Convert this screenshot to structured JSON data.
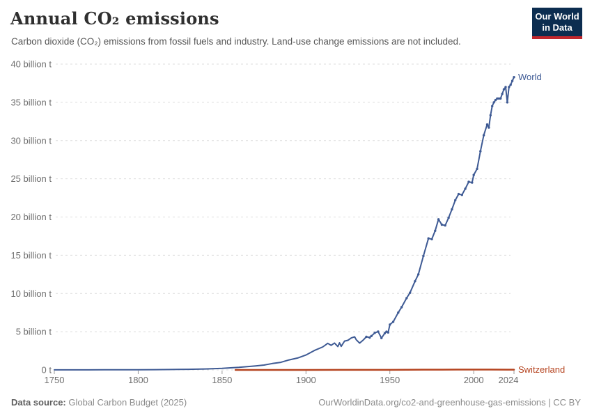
{
  "header": {
    "title": "Annual CO₂ emissions",
    "subtitle": "Carbon dioxide (CO₂) emissions from fossil fuels and industry. Land-use change emissions are not included.",
    "logo": {
      "line1": "Our World",
      "line2": "in Data",
      "bg_color": "#0c2d50",
      "bar_color": "#c1272d"
    }
  },
  "chart_data": {
    "type": "line",
    "title": "Annual CO₂ emissions",
    "xlabel": "",
    "ylabel": "",
    "unit": "billion tonnes of CO₂ per year",
    "xlim": [
      1750,
      2024
    ],
    "ylim": [
      0,
      40
    ],
    "grid": "horizontal dashed",
    "grid_color": "#dcdcdc",
    "tick_color": "#9a9a9a",
    "label_color": "#6e6e6e",
    "legend_position": "end-of-line labels",
    "x_ticks": [
      1750,
      1800,
      1850,
      1900,
      1950,
      2000,
      2024
    ],
    "y_ticks": [
      {
        "value": 0,
        "label": "0 t"
      },
      {
        "value": 5,
        "label": "5 billion t"
      },
      {
        "value": 10,
        "label": "10 billion t"
      },
      {
        "value": 15,
        "label": "15 billion t"
      },
      {
        "value": 20,
        "label": "20 billion t"
      },
      {
        "value": 25,
        "label": "25 billion t"
      },
      {
        "value": 30,
        "label": "30 billion t"
      },
      {
        "value": 35,
        "label": "35 billion t"
      },
      {
        "value": 40,
        "label": "40 billion t"
      }
    ],
    "series": [
      {
        "name": "World",
        "color": "#3e5a94",
        "markers_from_year": 1935,
        "points": [
          [
            1750,
            0.01
          ],
          [
            1760,
            0.011
          ],
          [
            1770,
            0.013
          ],
          [
            1780,
            0.016
          ],
          [
            1790,
            0.021
          ],
          [
            1800,
            0.03
          ],
          [
            1810,
            0.04
          ],
          [
            1820,
            0.054
          ],
          [
            1830,
            0.08
          ],
          [
            1840,
            0.13
          ],
          [
            1850,
            0.2
          ],
          [
            1855,
            0.27
          ],
          [
            1860,
            0.34
          ],
          [
            1865,
            0.43
          ],
          [
            1870,
            0.53
          ],
          [
            1875,
            0.64
          ],
          [
            1880,
            0.84
          ],
          [
            1885,
            0.99
          ],
          [
            1890,
            1.31
          ],
          [
            1895,
            1.56
          ],
          [
            1900,
            1.95
          ],
          [
            1905,
            2.54
          ],
          [
            1910,
            3.01
          ],
          [
            1913,
            3.48
          ],
          [
            1915,
            3.22
          ],
          [
            1917,
            3.52
          ],
          [
            1919,
            3.06
          ],
          [
            1920,
            3.55
          ],
          [
            1921,
            3.08
          ],
          [
            1923,
            3.77
          ],
          [
            1925,
            3.87
          ],
          [
            1927,
            4.18
          ],
          [
            1929,
            4.33
          ],
          [
            1930,
            3.94
          ],
          [
            1932,
            3.51
          ],
          [
            1934,
            3.88
          ],
          [
            1936,
            4.34
          ],
          [
            1938,
            4.24
          ],
          [
            1939,
            4.44
          ],
          [
            1941,
            4.85
          ],
          [
            1943,
            5.02
          ],
          [
            1945,
            4.16
          ],
          [
            1947,
            4.8
          ],
          [
            1948,
            5.0
          ],
          [
            1949,
            4.9
          ],
          [
            1950,
            5.93
          ],
          [
            1952,
            6.3
          ],
          [
            1955,
            7.5
          ],
          [
            1957,
            8.2
          ],
          [
            1960,
            9.39
          ],
          [
            1962,
            10.1
          ],
          [
            1965,
            11.6
          ],
          [
            1967,
            12.5
          ],
          [
            1970,
            14.9
          ],
          [
            1973,
            17.2
          ],
          [
            1975,
            17.1
          ],
          [
            1977,
            18.2
          ],
          [
            1979,
            19.7
          ],
          [
            1981,
            19.0
          ],
          [
            1983,
            18.9
          ],
          [
            1985,
            19.9
          ],
          [
            1987,
            21.0
          ],
          [
            1989,
            22.2
          ],
          [
            1991,
            23.0
          ],
          [
            1993,
            22.9
          ],
          [
            1995,
            23.7
          ],
          [
            1997,
            24.6
          ],
          [
            1999,
            24.5
          ],
          [
            2000,
            25.5
          ],
          [
            2002,
            26.3
          ],
          [
            2004,
            28.6
          ],
          [
            2006,
            30.7
          ],
          [
            2008,
            32.1
          ],
          [
            2009,
            31.7
          ],
          [
            2010,
            33.3
          ],
          [
            2011,
            34.5
          ],
          [
            2012,
            35.0
          ],
          [
            2013,
            35.3
          ],
          [
            2014,
            35.5
          ],
          [
            2015,
            35.5
          ],
          [
            2016,
            35.5
          ],
          [
            2017,
            36.1
          ],
          [
            2018,
            36.7
          ],
          [
            2019,
            37.0
          ],
          [
            2020,
            35.0
          ],
          [
            2021,
            37.0
          ],
          [
            2022,
            37.3
          ],
          [
            2023,
            37.8
          ],
          [
            2024,
            38.3
          ]
        ]
      },
      {
        "name": "Switzerland",
        "color": "#b5431f",
        "markers_from_year": 9999,
        "points": [
          [
            1858,
            0.0003
          ],
          [
            1880,
            0.001
          ],
          [
            1900,
            0.003
          ],
          [
            1920,
            0.005
          ],
          [
            1940,
            0.007
          ],
          [
            1950,
            0.011
          ],
          [
            1960,
            0.021
          ],
          [
            1970,
            0.04
          ],
          [
            1980,
            0.041
          ],
          [
            1990,
            0.044
          ],
          [
            2000,
            0.044
          ],
          [
            2010,
            0.043
          ],
          [
            2020,
            0.035
          ],
          [
            2024,
            0.033
          ]
        ]
      }
    ]
  },
  "footer": {
    "source_label": "Data source:",
    "source_value": " Global Carbon Budget (2025)",
    "credit": "OurWorldinData.org/co2-and-greenhouse-gas-emissions | CC BY"
  }
}
